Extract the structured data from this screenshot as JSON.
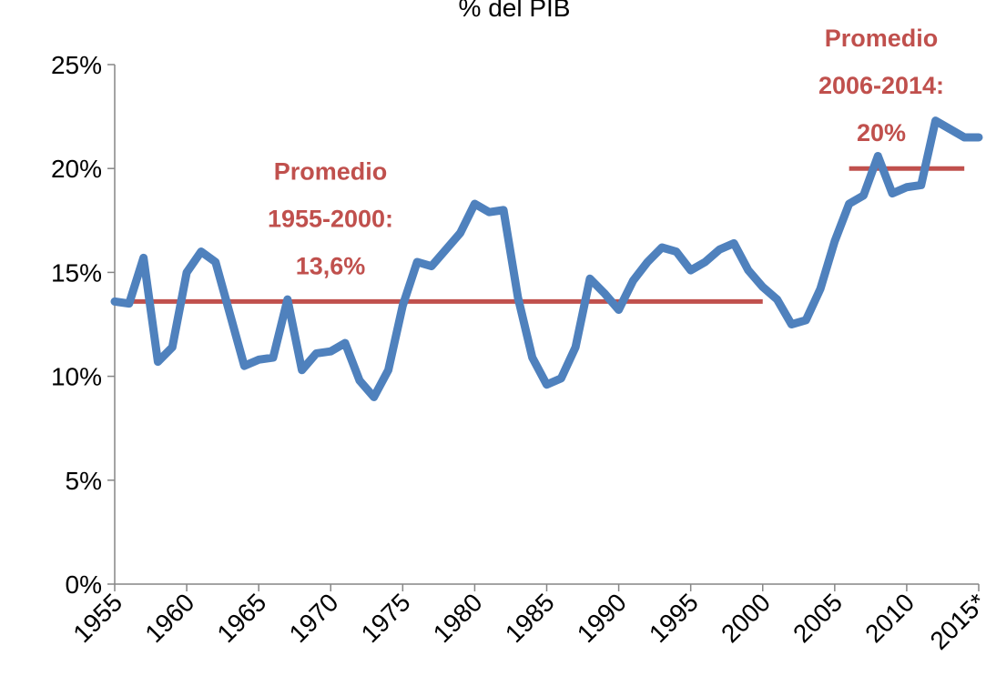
{
  "chart_data": {
    "type": "line",
    "title": "% del PIB",
    "x": [
      1955,
      1956,
      1957,
      1958,
      1959,
      1960,
      1961,
      1962,
      1963,
      1964,
      1965,
      1966,
      1967,
      1968,
      1969,
      1970,
      1971,
      1972,
      1973,
      1974,
      1975,
      1976,
      1977,
      1978,
      1979,
      1980,
      1981,
      1982,
      1983,
      1984,
      1985,
      1986,
      1987,
      1988,
      1989,
      1990,
      1991,
      1992,
      1993,
      1994,
      1995,
      1996,
      1997,
      1998,
      1999,
      2000,
      2001,
      2002,
      2003,
      2004,
      2005,
      2006,
      2007,
      2008,
      2009,
      2010,
      2011,
      2012,
      2013,
      2014,
      2015
    ],
    "series": [
      {
        "color": "#4f81bd",
        "values": [
          13.6,
          13.5,
          15.7,
          10.7,
          11.4,
          15.0,
          16.0,
          15.5,
          13.0,
          10.5,
          10.8,
          10.9,
          13.7,
          10.3,
          11.1,
          11.2,
          11.6,
          9.8,
          9.0,
          10.3,
          13.4,
          15.5,
          15.3,
          16.1,
          16.9,
          18.3,
          17.9,
          18.0,
          13.8,
          10.9,
          9.6,
          9.9,
          11.4,
          14.7,
          14.0,
          13.2,
          14.6,
          15.5,
          16.2,
          16.0,
          15.1,
          15.5,
          16.1,
          16.4,
          15.1,
          14.3,
          13.7,
          12.5,
          12.7,
          14.2,
          16.5,
          18.3,
          18.7,
          20.6,
          18.8,
          19.1,
          19.2,
          22.3,
          21.9,
          21.5,
          21.5
        ]
      }
    ],
    "xlim": [
      1955,
      2015
    ],
    "xticks": [
      1955,
      1960,
      1965,
      1970,
      1975,
      1980,
      1985,
      1990,
      1995,
      2000,
      2005,
      2010,
      {
        "value": 2015,
        "label": "2015*"
      }
    ],
    "ylim": [
      0,
      25
    ],
    "yticks": [
      {
        "value": 0,
        "label": "0%"
      },
      {
        "value": 5,
        "label": "5%"
      },
      {
        "value": 10,
        "label": "10%"
      },
      {
        "value": 15,
        "label": "15%"
      },
      {
        "value": 20,
        "label": "20%"
      },
      {
        "value": 25,
        "label": "25%"
      }
    ],
    "grid": false,
    "annotations": [
      {
        "lines": [
          "Promedio",
          "1955-2000:",
          "13,6%"
        ],
        "value": 13.6,
        "start": 1955,
        "end": 2000,
        "color": "#c0504d"
      },
      {
        "lines": [
          "Promedio",
          "2006-2014:",
          "20%"
        ],
        "value": 20,
        "start": 2006,
        "end": 2014,
        "color": "#c0504d"
      }
    ]
  }
}
